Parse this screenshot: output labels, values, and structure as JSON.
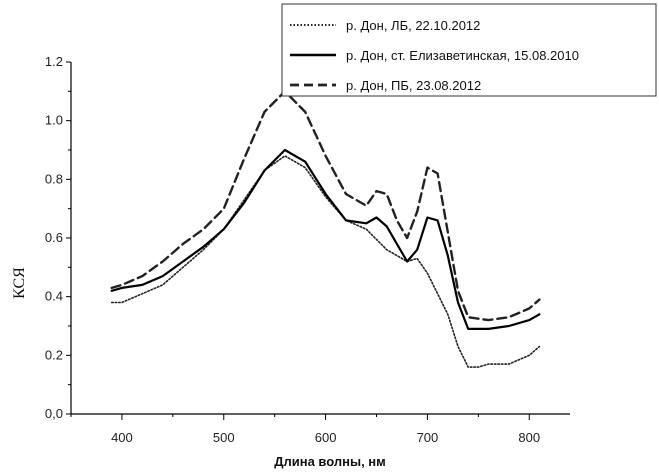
{
  "chart_data": {
    "type": "line",
    "title": "",
    "xlabel": "Длина волны, нм",
    "ylabel": "КСЯ",
    "xlim": [
      350,
      840
    ],
    "ylim": [
      0.0,
      1.2
    ],
    "xticks": [
      400,
      500,
      600,
      700,
      800
    ],
    "xtick_labels": [
      "400",
      "500",
      "600",
      "700",
      "800"
    ],
    "yticks": [
      0.0,
      0.2,
      0.4,
      0.6,
      0.8,
      1.0,
      1.2
    ],
    "ytick_labels": [
      "0,0",
      "0.2",
      "0.4",
      "0.6",
      "0.8",
      "1.0",
      "1.2"
    ],
    "grid": false,
    "legend_position": "top-right",
    "series": [
      {
        "name": "р. Дон, ЛБ, 22.10.2012",
        "style": "dotted",
        "color": "#222222",
        "x": [
          390,
          400,
          420,
          440,
          460,
          480,
          500,
          520,
          540,
          560,
          580,
          600,
          620,
          640,
          660,
          680,
          690,
          700,
          720,
          730,
          740,
          750,
          760,
          780,
          800,
          810
        ],
        "y": [
          0.38,
          0.38,
          0.41,
          0.44,
          0.5,
          0.56,
          0.63,
          0.73,
          0.83,
          0.88,
          0.84,
          0.74,
          0.66,
          0.63,
          0.56,
          0.52,
          0.53,
          0.48,
          0.34,
          0.23,
          0.16,
          0.16,
          0.17,
          0.17,
          0.2,
          0.23
        ]
      },
      {
        "name": "р. Дон, ст. Елизаветинская, 15.08.2010",
        "style": "solid",
        "color": "#000000",
        "x": [
          390,
          400,
          420,
          440,
          460,
          480,
          500,
          520,
          540,
          560,
          580,
          600,
          620,
          640,
          650,
          660,
          670,
          680,
          690,
          700,
          710,
          720,
          730,
          740,
          760,
          780,
          800,
          810
        ],
        "y": [
          0.42,
          0.43,
          0.44,
          0.47,
          0.52,
          0.57,
          0.63,
          0.72,
          0.83,
          0.9,
          0.86,
          0.75,
          0.66,
          0.65,
          0.67,
          0.64,
          0.58,
          0.52,
          0.56,
          0.67,
          0.66,
          0.54,
          0.38,
          0.29,
          0.29,
          0.3,
          0.32,
          0.34
        ]
      },
      {
        "name": "р. Дон, ПБ, 23.08.2012",
        "style": "dashed",
        "color": "#222222",
        "x": [
          390,
          400,
          420,
          440,
          460,
          480,
          500,
          520,
          540,
          560,
          580,
          600,
          620,
          640,
          650,
          660,
          670,
          680,
          690,
          700,
          710,
          720,
          730,
          740,
          760,
          780,
          800,
          810
        ],
        "y": [
          0.43,
          0.44,
          0.47,
          0.52,
          0.58,
          0.63,
          0.7,
          0.87,
          1.03,
          1.1,
          1.03,
          0.88,
          0.75,
          0.71,
          0.76,
          0.75,
          0.66,
          0.6,
          0.69,
          0.84,
          0.82,
          0.62,
          0.42,
          0.33,
          0.32,
          0.33,
          0.36,
          0.39
        ]
      }
    ]
  }
}
